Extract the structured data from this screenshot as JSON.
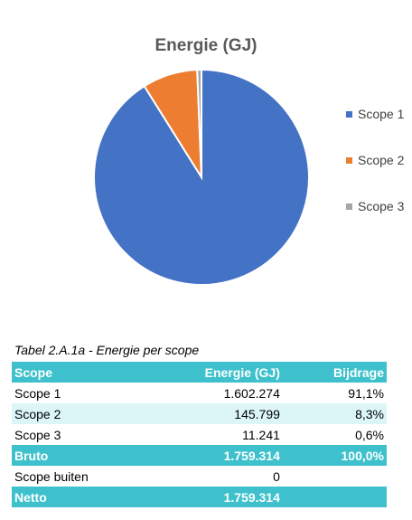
{
  "chart_data": {
    "type": "pie",
    "title": "Energie (GJ)",
    "categories": [
      "Scope 1",
      "Scope 2",
      "Scope 3"
    ],
    "values": [
      1602274,
      145799,
      11241
    ],
    "colors": [
      "#4472c4",
      "#ed7d31",
      "#a5a5a5"
    ],
    "legend_position": "right"
  },
  "table": {
    "caption": "Tabel 2.A.1a - Energie per scope",
    "headers": [
      "Scope",
      "Energie (GJ)",
      "Bijdrage"
    ],
    "rows": [
      [
        "Scope 1",
        "1.602.274",
        "91,1%"
      ],
      [
        "Scope 2",
        "145.799",
        "8,3%"
      ],
      [
        "Scope 3",
        "11.241",
        "0,6%"
      ],
      [
        "Bruto",
        "1.759.314",
        "100,0%"
      ],
      [
        "Scope buiten",
        "0",
        ""
      ],
      [
        "Netto",
        "1.759.314",
        ""
      ]
    ]
  }
}
